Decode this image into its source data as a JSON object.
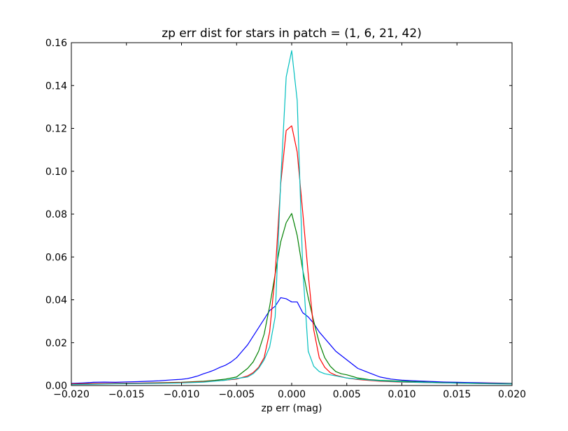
{
  "chart_data": {
    "type": "line",
    "title": "zp err dist for stars in patch = (1, 6, 21, 42)",
    "xlabel": "zp err (mag)",
    "ylabel": "",
    "xlim": [
      -0.02,
      0.02
    ],
    "ylim": [
      0,
      0.16
    ],
    "xticks": [
      -0.02,
      -0.015,
      -0.01,
      -0.005,
      0.0,
      0.005,
      0.01,
      0.015,
      0.02
    ],
    "xtick_labels": [
      "−0.020",
      "−0.015",
      "−0.010",
      "−0.005",
      "0.000",
      "0.005",
      "0.010",
      "0.015",
      "0.020"
    ],
    "yticks": [
      0,
      0.02,
      0.04,
      0.06,
      0.08,
      0.1,
      0.12,
      0.14,
      0.16
    ],
    "ytick_labels": [
      "0.00",
      "0.02",
      "0.04",
      "0.06",
      "0.08",
      "0.10",
      "0.12",
      "0.14",
      "0.16"
    ],
    "grid": false,
    "legend": "none",
    "series": [
      {
        "color": "#0000ff",
        "x": [
          -0.02,
          -0.019,
          -0.018,
          -0.017,
          -0.016,
          -0.015,
          -0.014,
          -0.013,
          -0.012,
          -0.011,
          -0.01,
          -0.0095,
          -0.009,
          -0.0085,
          -0.008,
          -0.0075,
          -0.007,
          -0.0065,
          -0.006,
          -0.0055,
          -0.005,
          -0.0045,
          -0.004,
          -0.0035,
          -0.003,
          -0.0025,
          -0.002,
          -0.0015,
          -0.001,
          -0.0005,
          0.0,
          0.0005,
          0.001,
          0.0015,
          0.002,
          0.0025,
          0.003,
          0.0035,
          0.004,
          0.0045,
          0.005,
          0.0055,
          0.006,
          0.0065,
          0.007,
          0.0075,
          0.008,
          0.009,
          0.01,
          0.011,
          0.012,
          0.013,
          0.014,
          0.015,
          0.016,
          0.017,
          0.018,
          0.019,
          0.02
        ],
        "y": [
          0.001,
          0.0012,
          0.0015,
          0.0016,
          0.0015,
          0.0017,
          0.0018,
          0.002,
          0.0022,
          0.0026,
          0.0029,
          0.0032,
          0.0038,
          0.0045,
          0.0055,
          0.0063,
          0.0073,
          0.0085,
          0.0095,
          0.011,
          0.013,
          0.016,
          0.019,
          0.023,
          0.027,
          0.031,
          0.035,
          0.037,
          0.041,
          0.0405,
          0.039,
          0.039,
          0.034,
          0.032,
          0.029,
          0.025,
          0.022,
          0.019,
          0.016,
          0.014,
          0.012,
          0.01,
          0.008,
          0.007,
          0.006,
          0.005,
          0.004,
          0.003,
          0.0025,
          0.0022,
          0.002,
          0.0018,
          0.0016,
          0.0015,
          0.0014,
          0.0013,
          0.0012,
          0.0011,
          0.001
        ]
      },
      {
        "color": "#008000",
        "x": [
          -0.02,
          -0.018,
          -0.016,
          -0.014,
          -0.012,
          -0.01,
          -0.008,
          -0.007,
          -0.006,
          -0.005,
          -0.0045,
          -0.004,
          -0.0035,
          -0.003,
          -0.0025,
          -0.002,
          -0.0015,
          -0.001,
          -0.0005,
          0.0,
          0.0005,
          0.001,
          0.0015,
          0.002,
          0.0025,
          0.003,
          0.0035,
          0.004,
          0.0045,
          0.005,
          0.006,
          0.007,
          0.008,
          0.01,
          0.012,
          0.014,
          0.016,
          0.018,
          0.02
        ],
        "y": [
          0.0008,
          0.0009,
          0.001,
          0.0011,
          0.0013,
          0.0015,
          0.002,
          0.0024,
          0.003,
          0.004,
          0.006,
          0.008,
          0.011,
          0.016,
          0.024,
          0.037,
          0.052,
          0.067,
          0.076,
          0.0803,
          0.07,
          0.054,
          0.041,
          0.03,
          0.02,
          0.013,
          0.009,
          0.0065,
          0.0055,
          0.005,
          0.0035,
          0.0028,
          0.0024,
          0.002,
          0.0016,
          0.0013,
          0.0011,
          0.001,
          0.0009
        ]
      },
      {
        "color": "#ff0000",
        "x": [
          -0.02,
          -0.018,
          -0.016,
          -0.014,
          -0.012,
          -0.01,
          -0.008,
          -0.006,
          -0.005,
          -0.004,
          -0.0035,
          -0.003,
          -0.0025,
          -0.002,
          -0.0015,
          -0.001,
          -0.0005,
          0.0,
          0.0005,
          0.001,
          0.0015,
          0.002,
          0.0025,
          0.003,
          0.0035,
          0.004,
          0.005,
          0.006,
          0.008,
          0.01,
          0.012,
          0.014,
          0.016,
          0.018,
          0.02
        ],
        "y": [
          0.0008,
          0.0009,
          0.001,
          0.0011,
          0.0012,
          0.0014,
          0.0018,
          0.0025,
          0.003,
          0.0045,
          0.006,
          0.0085,
          0.013,
          0.025,
          0.052,
          0.094,
          0.119,
          0.1212,
          0.109,
          0.081,
          0.052,
          0.026,
          0.013,
          0.0085,
          0.006,
          0.0048,
          0.0035,
          0.0028,
          0.002,
          0.0016,
          0.0014,
          0.0012,
          0.001,
          0.0009,
          0.0008
        ]
      },
      {
        "color": "#00bfbf",
        "x": [
          -0.02,
          -0.018,
          -0.016,
          -0.014,
          -0.012,
          -0.01,
          -0.008,
          -0.006,
          -0.004,
          -0.0035,
          -0.003,
          -0.0025,
          -0.002,
          -0.0015,
          -0.001,
          -0.0005,
          0.0,
          0.0005,
          0.001,
          0.0015,
          0.002,
          0.0025,
          0.003,
          0.004,
          0.005,
          0.006,
          0.008,
          0.01,
          0.012,
          0.014,
          0.016,
          0.018,
          0.02
        ],
        "y": [
          0.0005,
          0.0006,
          0.0008,
          0.0009,
          0.001,
          0.0012,
          0.0016,
          0.0025,
          0.004,
          0.0055,
          0.008,
          0.012,
          0.018,
          0.032,
          0.095,
          0.144,
          0.1563,
          0.133,
          0.055,
          0.016,
          0.009,
          0.0065,
          0.0055,
          0.0045,
          0.0035,
          0.003,
          0.0022,
          0.0017,
          0.0014,
          0.0012,
          0.001,
          0.0008,
          0.0007
        ]
      }
    ]
  }
}
